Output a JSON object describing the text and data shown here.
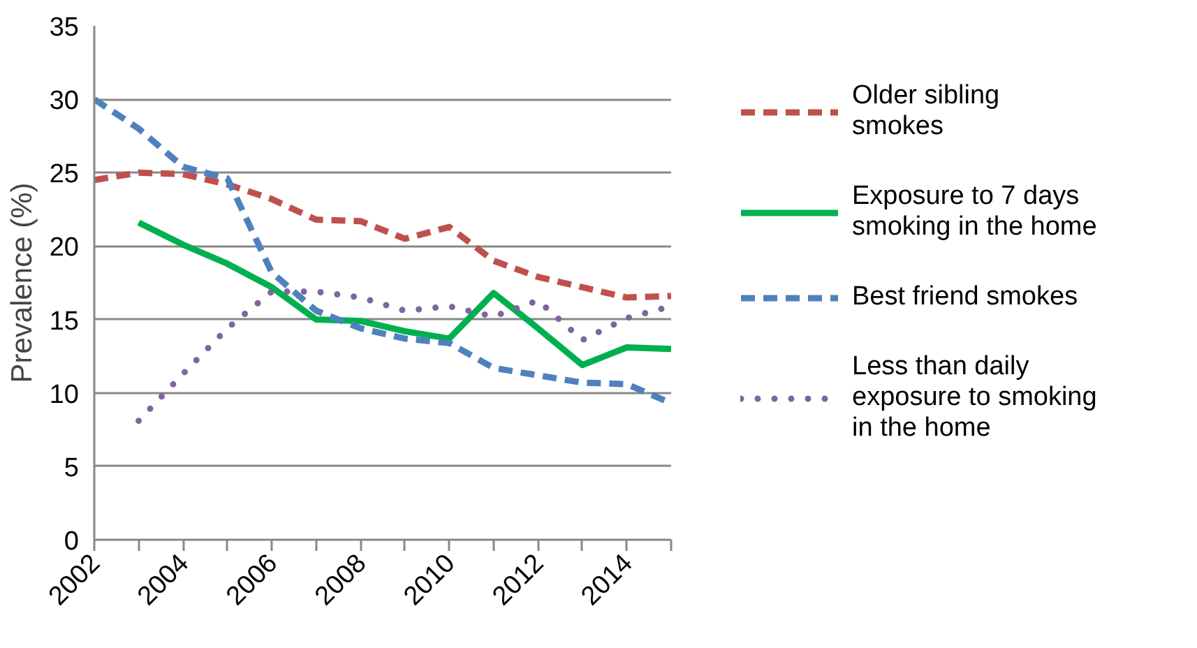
{
  "chart_data": {
    "type": "line",
    "ylabel": "Prevalence (%)",
    "x": [
      2002,
      2003,
      2004,
      2005,
      2006,
      2007,
      2008,
      2009,
      2010,
      2011,
      2012,
      2013,
      2014,
      2015
    ],
    "series": [
      {
        "name": "Older sibling smokes",
        "color": "#c0504d",
        "line_style": "dashed",
        "values": [
          24.5,
          25.0,
          24.9,
          24.2,
          23.2,
          21.8,
          21.7,
          20.5,
          21.3,
          19.0,
          17.9,
          17.2,
          16.5,
          16.6
        ]
      },
      {
        "name": "Exposure to 7 days smoking in the home",
        "color": "#00b050",
        "line_style": "solid",
        "values": [
          null,
          21.6,
          20.1,
          18.8,
          17.2,
          15.0,
          14.9,
          14.2,
          13.7,
          16.8,
          14.4,
          11.9,
          13.1,
          13.0
        ]
      },
      {
        "name": "Best friend smokes",
        "color": "#4f81bd",
        "line_style": "dashed",
        "values": [
          30.0,
          28.0,
          25.4,
          24.6,
          18.2,
          15.6,
          14.4,
          13.7,
          13.4,
          11.7,
          11.2,
          10.7,
          10.6,
          9.3
        ]
      },
      {
        "name": "Less than daily exposure to smoking in the home",
        "color": "#8064a2",
        "line_style": "dotted",
        "values": [
          null,
          8.1,
          11.3,
          14.4,
          16.9,
          16.9,
          16.5,
          15.6,
          15.9,
          15.2,
          16.3,
          13.6,
          15.1,
          15.9
        ]
      }
    ],
    "xlim": [
      2002,
      2015
    ],
    "xticks": [
      2002,
      {
        "value": 2003,
        "label": null
      },
      2004,
      {
        "value": 2005,
        "label": null
      },
      2006,
      {
        "value": 2007,
        "label": null
      },
      2008,
      {
        "value": 2009,
        "label": null
      },
      2010,
      {
        "value": 2011,
        "label": null
      },
      2012,
      {
        "value": 2013,
        "label": null
      },
      2014,
      {
        "value": 2015,
        "label": null
      }
    ],
    "ylim": [
      0,
      35
    ],
    "yticks": [
      0,
      5,
      10,
      15,
      20,
      25,
      30,
      35
    ],
    "grid": "y",
    "legend": "right",
    "marker": "none"
  }
}
